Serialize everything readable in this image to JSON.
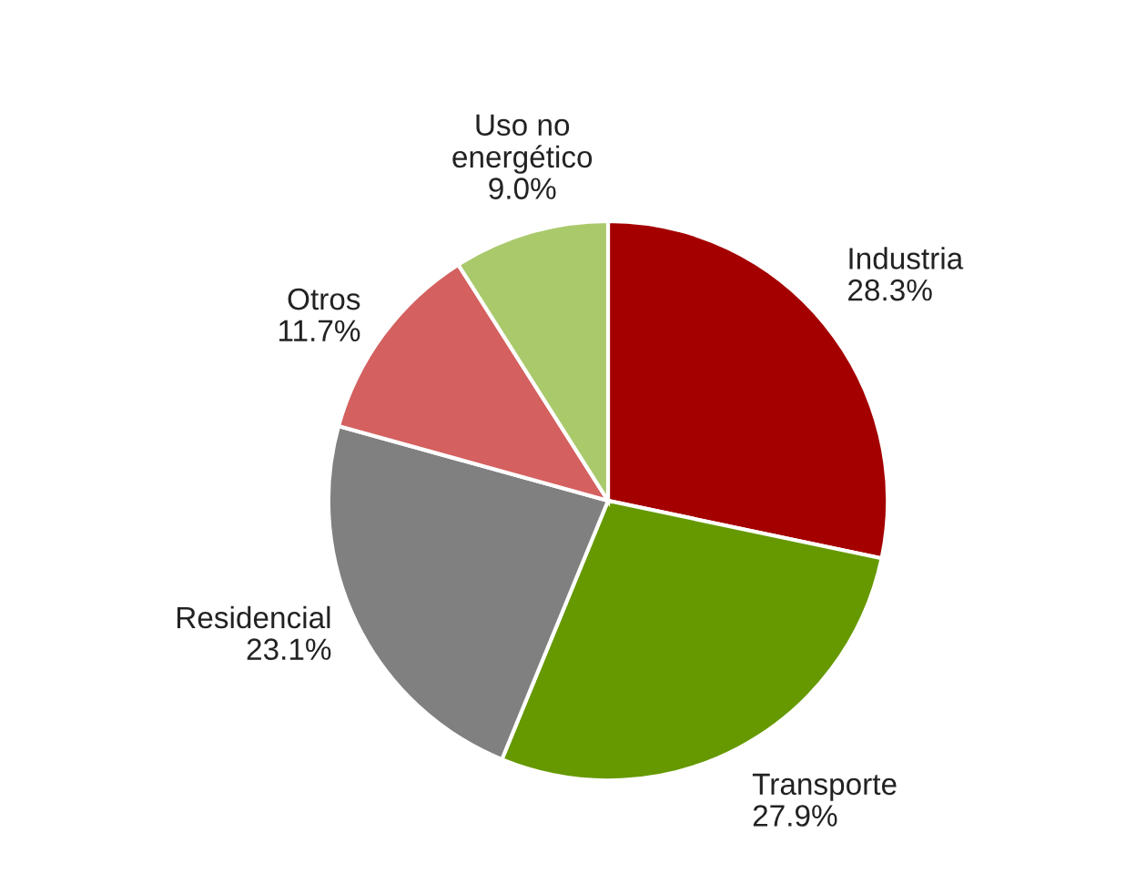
{
  "chart_data": {
    "type": "pie",
    "categories": [
      "Industria",
      "Transporte",
      "Residencial",
      "Otros",
      "Uso no\nenergético"
    ],
    "values": [
      28.3,
      27.9,
      23.1,
      11.7,
      9.0
    ],
    "value_labels": [
      "28.3%",
      "27.9%",
      "23.1%",
      "11.7%",
      "9.0%"
    ],
    "colors": [
      "#a50000",
      "#669900",
      "#808080",
      "#d46060",
      "#a9c96b"
    ],
    "legend": false
  }
}
